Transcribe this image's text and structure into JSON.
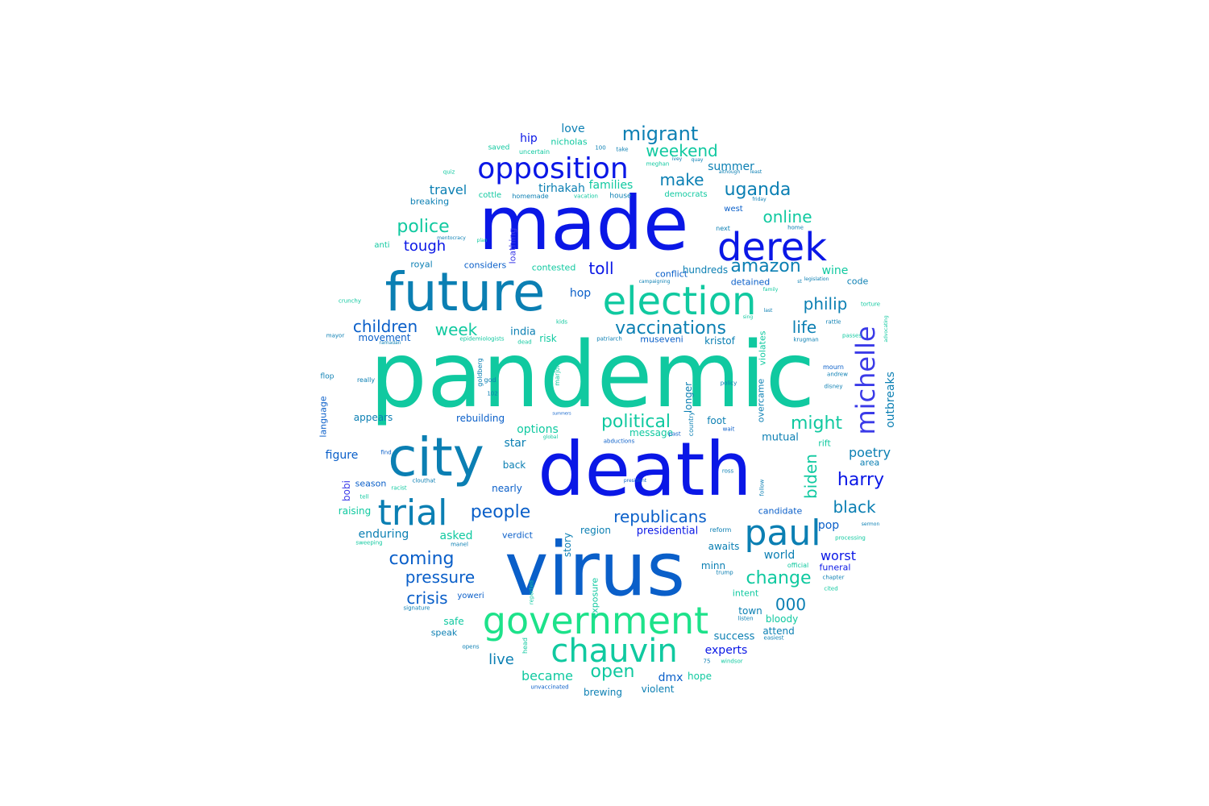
{
  "palette": {
    "blue": "#0a17e6",
    "mid_blue": "#0a5fc9",
    "teal_blue": "#0b7fb3",
    "teal": "#10c9a0",
    "green": "#1de28a",
    "periwinkle": "#3a3ae8"
  },
  "words": [
    "pandemic",
    "virus",
    "death",
    "made",
    "city",
    "future",
    "derek",
    "election",
    "government",
    "chauvin",
    "paul",
    "trial",
    "opposition",
    "michelle",
    "migrant",
    "weekend",
    "uganda",
    "online",
    "amazon",
    "philip",
    "life",
    "vaccinations",
    "week",
    "children",
    "police",
    "tough",
    "toll",
    "political",
    "might",
    "biden",
    "harry",
    "black",
    "people",
    "republicans",
    "coming",
    "pressure",
    "crisis",
    "change",
    "000",
    "worst",
    "open",
    "experts",
    "live",
    "became",
    "dmx",
    "make",
    "travel",
    "families",
    "tirhakah",
    "summer",
    "hip",
    "love",
    "nicholas",
    "hop",
    "india",
    "risk",
    "museveni",
    "kristof",
    "options",
    "star",
    "figure",
    "back",
    "bobi",
    "season",
    "nearly",
    "raising",
    "enduring",
    "asked",
    "verdict",
    "story",
    "region",
    "presidential",
    "awaits",
    "world",
    "funeral",
    "pop",
    "poetry",
    "outbreaks",
    "longer",
    "overcame",
    "violates",
    "mutual",
    "candidate",
    "wine",
    "code",
    "rift",
    "area",
    "language",
    "appears",
    "rebuilding",
    "movement",
    "contested",
    "conflict",
    "hundreds",
    "detained",
    "considers",
    "royal",
    "anti",
    "loathing",
    "breaking",
    "cottle",
    "homemade",
    "vacation",
    "house",
    "democrats",
    "west",
    "saved",
    "uncertain",
    "meghan",
    "quiz",
    "plan",
    "next",
    "home",
    "legislation",
    "torture",
    "rattle",
    "krugman",
    "passes",
    "mourn",
    "andrew",
    "disney",
    "policy",
    "foot",
    "wait",
    "message",
    "past",
    "country",
    "global",
    "abductions",
    "town",
    "listen",
    "bloody",
    "attend",
    "easiest",
    "success",
    "hope",
    "brewing",
    "violent",
    "unvaccinated",
    "speak",
    "safe",
    "yoweri",
    "exposure",
    "intent",
    "minn",
    "trump",
    "reform",
    "processing",
    "official",
    "chapter",
    "cited",
    "head",
    "reported",
    "signature",
    "sweeping",
    "manel",
    "clouthat",
    "racist",
    "tell",
    "god",
    "goldberg",
    "really",
    "flop",
    "mayor",
    "crunchy",
    "epidemiologists",
    "dead",
    "kids",
    "patriarch",
    "follow",
    "ross",
    "find",
    "102",
    "75",
    "windsor",
    "marjorie",
    "summers",
    "although",
    "least",
    "campaigning",
    "friday",
    "sing",
    "last",
    "family",
    "st",
    "100",
    "take",
    "ivey",
    "quay",
    "opens",
    "president",
    "sermon",
    "advocating",
    "mentocracy",
    "ramadan",
    "sunday"
  ]
}
